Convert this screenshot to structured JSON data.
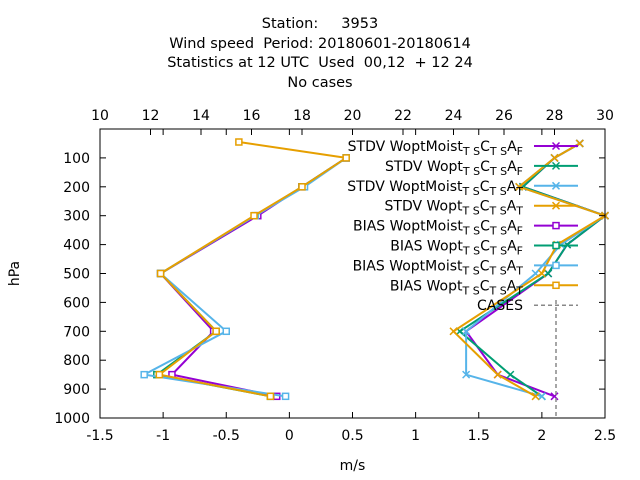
{
  "titles": {
    "line1": "Station:     3953",
    "line2": "Wind speed  Period: 20180601-20180614",
    "line3": "Statistics at 12 UTC  Used  00,12  + 12 24",
    "line4": "No cases"
  },
  "chart_data": {
    "type": "line",
    "xlabel": "m/s",
    "ylabel": "hPa",
    "x_bottom": {
      "range": [
        -1.5,
        2.5
      ],
      "ticks": [
        "-1.5",
        "-1",
        "-0.5",
        "0",
        "0.5",
        "1",
        "1.5",
        "2",
        "2.5"
      ]
    },
    "x_top": {
      "range": [
        10,
        30
      ],
      "ticks": [
        "10",
        "12",
        "14",
        "16",
        "18",
        "20",
        "22",
        "24",
        "26",
        "28",
        "30"
      ]
    },
    "y": {
      "range": [
        0,
        1000
      ],
      "reversed": true,
      "ticks": [
        "100",
        "200",
        "300",
        "400",
        "500",
        "600",
        "700",
        "800",
        "900",
        "1000"
      ]
    },
    "grid": false,
    "legend_position": "top-right",
    "series": [
      {
        "name": "STDV WoptMoist",
        "sub1": "T S",
        "mid1": "C",
        "sub2": "T S",
        "mid2": "A",
        "sub3": "F",
        "color": "#9400d3",
        "marker": "x",
        "axis": "bottom",
        "points": [
          [
            2.3,
            50
          ],
          [
            2.1,
            100
          ],
          [
            1.85,
            200
          ],
          [
            2.5,
            300
          ],
          [
            2.2,
            400
          ],
          [
            2.05,
            500
          ],
          [
            1.4,
            700
          ],
          [
            1.65,
            850
          ],
          [
            2.1,
            925
          ]
        ]
      },
      {
        "name": "STDV Wopt",
        "sub1": "T S",
        "mid1": "C",
        "sub2": "T S",
        "mid2": "A",
        "sub3": "F",
        "color": "#009e73",
        "marker": "x",
        "axis": "bottom",
        "points": [
          [
            2.3,
            50
          ],
          [
            2.1,
            100
          ],
          [
            1.85,
            200
          ],
          [
            2.5,
            300
          ],
          [
            2.2,
            400
          ],
          [
            2.05,
            500
          ],
          [
            1.35,
            700
          ],
          [
            1.75,
            850
          ],
          [
            2.0,
            925
          ]
        ]
      },
      {
        "name": "STDV WoptMoist",
        "sub1": "T S",
        "mid1": "C",
        "sub2": "T S",
        "mid2": "A",
        "sub3": "T",
        "color": "#56b4e9",
        "marker": "x",
        "axis": "bottom",
        "points": [
          [
            2.3,
            50
          ],
          [
            2.1,
            100
          ],
          [
            1.82,
            200
          ],
          [
            2.5,
            300
          ],
          [
            2.15,
            400
          ],
          [
            1.95,
            500
          ],
          [
            1.4,
            700
          ],
          [
            1.4,
            850
          ],
          [
            2.0,
            925
          ]
        ]
      },
      {
        "name": "STDV Wopt",
        "sub1": "T S",
        "mid1": "C",
        "sub2": "T S",
        "mid2": "A",
        "sub3": "T",
        "color": "#e69f00",
        "marker": "x",
        "axis": "bottom",
        "points": [
          [
            2.3,
            50
          ],
          [
            2.1,
            100
          ],
          [
            1.82,
            200
          ],
          [
            2.5,
            300
          ],
          [
            2.12,
            400
          ],
          [
            2.0,
            500
          ],
          [
            1.3,
            700
          ],
          [
            1.65,
            850
          ],
          [
            1.95,
            925
          ]
        ]
      },
      {
        "name": "BIAS WoptMoist",
        "sub1": "T S",
        "mid1": "C",
        "sub2": "T S",
        "mid2": "A",
        "sub3": "F",
        "color": "#9400d3",
        "marker": "square",
        "axis": "bottom",
        "points": [
          [
            0.45,
            100
          ],
          [
            0.1,
            200
          ],
          [
            -0.25,
            300
          ],
          [
            -1.02,
            500
          ],
          [
            -0.6,
            700
          ],
          [
            -0.93,
            850
          ],
          [
            -0.1,
            925
          ]
        ]
      },
      {
        "name": "BIAS Wopt",
        "sub1": "T S",
        "mid1": "C",
        "sub2": "T S",
        "mid2": "A",
        "sub3": "F",
        "color": "#009e73",
        "marker": "square",
        "axis": "bottom",
        "points": [
          [
            0.45,
            100
          ],
          [
            0.1,
            200
          ],
          [
            -0.27,
            300
          ],
          [
            -1.02,
            500
          ],
          [
            -0.58,
            700
          ],
          [
            -1.05,
            850
          ],
          [
            -0.15,
            925
          ]
        ]
      },
      {
        "name": "BIAS WoptMoist",
        "sub1": "T S",
        "mid1": "C",
        "sub2": "T S",
        "mid2": "A",
        "sub3": "T",
        "color": "#56b4e9",
        "marker": "square",
        "axis": "bottom",
        "points": [
          [
            0.45,
            100
          ],
          [
            0.12,
            200
          ],
          [
            -0.27,
            300
          ],
          [
            -1.02,
            500
          ],
          [
            -0.5,
            700
          ],
          [
            -1.15,
            850
          ],
          [
            -0.03,
            925
          ]
        ]
      },
      {
        "name": "BIAS Wopt",
        "sub1": "T S",
        "mid1": "C",
        "sub2": "T S",
        "mid2": "A",
        "sub3": "T",
        "color": "#e69f00",
        "marker": "square",
        "axis": "bottom",
        "points": [
          [
            -0.4,
            45
          ],
          [
            0.45,
            100
          ],
          [
            0.1,
            200
          ],
          [
            -0.28,
            300
          ],
          [
            -1.02,
            500
          ],
          [
            -0.58,
            700
          ],
          [
            -1.03,
            850
          ],
          [
            -0.15,
            925
          ]
        ]
      },
      {
        "name": "CASES",
        "color": "#888888",
        "marker": "none",
        "axis": "top",
        "dashed": true,
        "points": []
      }
    ]
  }
}
